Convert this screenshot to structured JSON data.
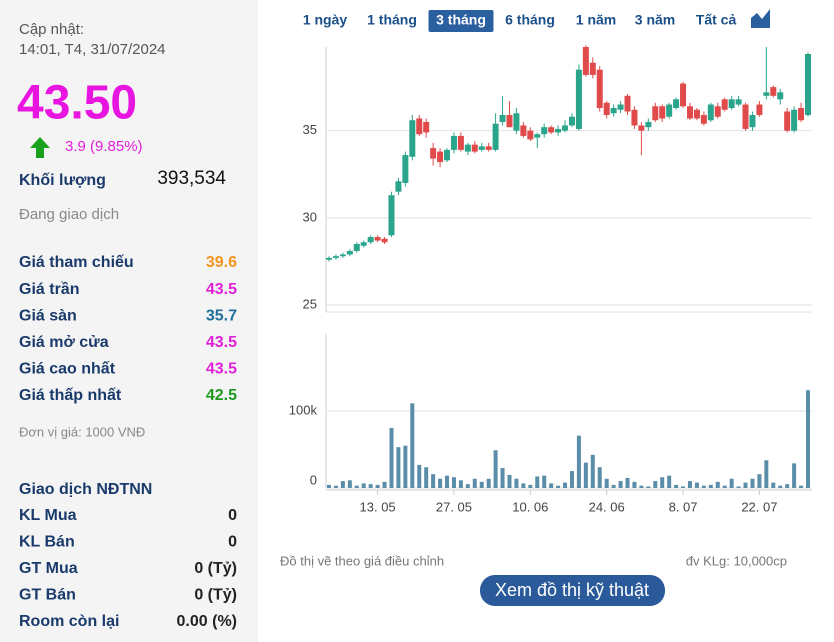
{
  "info": {
    "updated_label": "Cập nhật:",
    "updated_time": "14:01, T4, 31/07/2024",
    "price": "43.50",
    "change": "3.9 (9.85%)",
    "volume_label": "Khối lượng",
    "volume": "393,534",
    "status": "Đang giao dịch",
    "stats": [
      {
        "label": "Giá tham chiếu",
        "value": "39.6",
        "color": "#f7941d"
      },
      {
        "label": "Giá trần",
        "value": "43.5",
        "color": "#e020d8"
      },
      {
        "label": "Giá sàn",
        "value": "35.7",
        "color": "#1f6f9a"
      },
      {
        "label": "Giá mở cửa",
        "value": "43.5",
        "color": "#e020d8"
      },
      {
        "label": "Giá cao nhất",
        "value": "43.5",
        "color": "#e020d8"
      },
      {
        "label": "Giá thấp nhất",
        "value": "42.5",
        "color": "#1f9a1f"
      }
    ],
    "unit_note": "Đơn vị giá: 1000 VNĐ",
    "foreign_title": "Giao dịch NĐTNN",
    "foreign": [
      {
        "label": "KL Mua",
        "value": "0"
      },
      {
        "label": "KL Bán",
        "value": "0"
      },
      {
        "label": "GT Mua",
        "value": "0 (Tỷ)"
      },
      {
        "label": "GT Bán",
        "value": "0 (Tỷ)"
      },
      {
        "label": "Room còn lại",
        "value": "0.00 (%)"
      }
    ]
  },
  "tabs": [
    "1 ngày",
    "1 tháng",
    "3 tháng",
    "6 tháng",
    "1 năm",
    "3 năm",
    "Tất cả"
  ],
  "active_tab": 2,
  "chart_data": [
    {
      "type": "candlestick",
      "up_color": "#2aa58c",
      "down_color": "#e04a4a",
      "ylim": [
        24.6,
        39.8
      ],
      "yticks": [
        25,
        30,
        35
      ],
      "grid": true,
      "open": [
        27.6,
        27.7,
        27.8,
        27.9,
        28.1,
        28.4,
        28.6,
        28.9,
        28.8,
        29.0,
        31.5,
        32.0,
        33.5,
        35.7,
        35.5,
        34.0,
        33.8,
        33.3,
        33.9,
        34.7,
        33.8,
        34.2,
        33.9,
        34.1,
        33.9,
        35.5,
        35.9,
        35.0,
        35.3,
        35.0,
        34.6,
        34.8,
        35.2,
        34.9,
        35.0,
        35.3,
        35.1,
        39.8,
        38.9,
        38.5,
        36.6,
        36.0,
        36.2,
        37.0,
        36.2,
        35.3,
        35.2,
        36.4,
        36.4,
        35.8,
        36.3,
        37.7,
        36.4,
        36.2,
        35.9,
        35.6,
        36.4,
        36.8,
        36.3,
        36.5,
        36.5,
        35.2,
        36.5,
        37.0,
        37.5,
        36.8,
        36.1,
        35.0,
        36.3,
        35.9
      ],
      "high": [
        27.8,
        27.9,
        28.0,
        28.2,
        28.6,
        28.7,
        29.0,
        29.0,
        28.9,
        31.5,
        32.3,
        33.8,
        35.9,
        35.9,
        35.7,
        34.3,
        34.0,
        34.0,
        34.9,
        34.9,
        34.3,
        34.4,
        34.3,
        34.3,
        36.0,
        37.0,
        36.7,
        36.3,
        35.5,
        35.2,
        34.9,
        35.4,
        35.3,
        35.3,
        35.6,
        36.0,
        38.8,
        39.9,
        39.2,
        38.7,
        36.7,
        36.5,
        36.7,
        37.1,
        36.4,
        35.5,
        35.7,
        36.6,
        36.5,
        36.6,
        36.9,
        37.8,
        36.6,
        36.3,
        36.1,
        36.6,
        36.6,
        36.9,
        37.0,
        37.0,
        36.6,
        36.1,
        36.7,
        39.8,
        37.6,
        37.4,
        36.3,
        36.4,
        36.6,
        39.5
      ],
      "low": [
        27.5,
        27.6,
        27.7,
        27.8,
        28.0,
        28.3,
        28.5,
        28.6,
        28.5,
        28.9,
        31.3,
        31.8,
        33.3,
        34.7,
        34.6,
        33.0,
        32.9,
        33.2,
        33.7,
        33.8,
        33.6,
        33.7,
        33.8,
        33.8,
        33.8,
        35.3,
        35.2,
        34.8,
        34.6,
        34.4,
        34.0,
        34.6,
        34.8,
        34.7,
        34.9,
        35.2,
        35.0,
        38.1,
        38.0,
        36.1,
        35.7,
        35.8,
        36.0,
        35.9,
        35.1,
        33.6,
        35.0,
        35.5,
        35.5,
        35.7,
        36.2,
        36.3,
        35.6,
        35.6,
        35.3,
        35.5,
        35.7,
        36.1,
        36.2,
        36.4,
        35.0,
        35.0,
        35.8,
        36.8,
        36.9,
        36.5,
        34.9,
        34.9,
        35.5,
        35.8
      ],
      "close": [
        27.7,
        27.8,
        27.9,
        28.1,
        28.5,
        28.6,
        28.9,
        28.7,
        28.6,
        31.3,
        32.1,
        33.6,
        35.6,
        34.8,
        34.9,
        33.4,
        33.2,
        33.9,
        34.7,
        33.9,
        34.2,
        33.8,
        34.1,
        33.9,
        35.4,
        35.9,
        35.2,
        36.0,
        34.7,
        34.5,
        34.8,
        35.2,
        34.9,
        35.1,
        35.3,
        35.8,
        38.5,
        38.2,
        38.2,
        36.3,
        35.9,
        36.3,
        36.5,
        36.1,
        35.3,
        35.0,
        35.5,
        35.6,
        35.7,
        36.5,
        36.8,
        36.4,
        35.7,
        35.7,
        35.4,
        36.5,
        35.8,
        36.2,
        36.8,
        36.8,
        35.1,
        35.9,
        35.9,
        37.2,
        37.0,
        37.2,
        35.0,
        36.2,
        35.6,
        39.4
      ]
    },
    {
      "type": "bar",
      "color": "#5a8ea8",
      "ylim": [
        0,
        200000
      ],
      "yticks": [
        0,
        {
          "value": 100000,
          "label": "100k"
        }
      ],
      "grid": true,
      "categories": [
        null,
        null,
        null,
        null,
        null,
        null,
        null,
        "13. 05",
        null,
        null,
        null,
        null,
        null,
        null,
        null,
        null,
        null,
        null,
        "27. 05",
        null,
        null,
        null,
        null,
        null,
        null,
        null,
        null,
        null,
        null,
        "10. 06",
        null,
        null,
        null,
        null,
        null,
        null,
        null,
        null,
        null,
        null,
        "24. 06",
        null,
        null,
        null,
        null,
        null,
        null,
        null,
        null,
        null,
        null,
        "8. 07",
        null,
        null,
        null,
        null,
        null,
        null,
        null,
        null,
        null,
        null,
        "22. 07",
        null,
        null,
        null,
        null,
        null,
        null,
        null
      ],
      "values": [
        4000,
        3000,
        9000,
        10000,
        3000,
        6000,
        5000,
        4000,
        8000,
        78000,
        53000,
        55000,
        110000,
        30000,
        27000,
        18000,
        12000,
        16000,
        14000,
        10000,
        5000,
        12000,
        8000,
        12000,
        49000,
        26000,
        17000,
        12000,
        6000,
        4000,
        15000,
        16000,
        6000,
        3000,
        7000,
        22000,
        68000,
        33000,
        43000,
        27000,
        12000,
        4000,
        9000,
        13000,
        8000,
        3000,
        2000,
        9000,
        14000,
        16000,
        4000,
        2000,
        9000,
        7000,
        3000,
        4000,
        8000,
        3000,
        12000,
        2000,
        7000,
        12000,
        18000,
        36000,
        7000,
        3000,
        5000,
        32000,
        3000,
        127000
      ]
    }
  ],
  "footnote_left": "Đồ thị vẽ theo giá điều chỉnh",
  "footnote_right": "đv KLg: 10,000cp",
  "button": "Xem đồ thị kỹ thuật"
}
